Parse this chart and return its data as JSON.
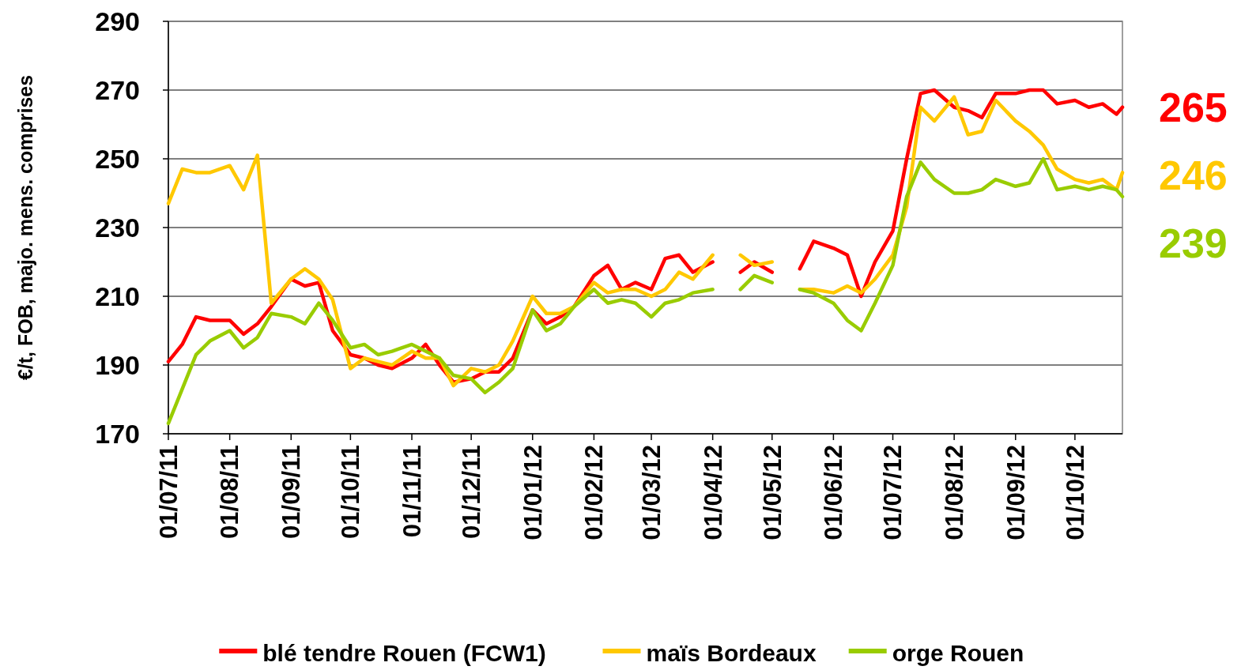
{
  "chart_data": {
    "type": "line",
    "ylabel": "€/t, FOB, majo. mens. comprises",
    "x": [
      "2011-07-01",
      "2011-07-08",
      "2011-07-15",
      "2011-07-22",
      "2011-08-01",
      "2011-08-08",
      "2011-08-15",
      "2011-08-22",
      "2011-09-01",
      "2011-09-08",
      "2011-09-15",
      "2011-09-22",
      "2011-10-01",
      "2011-10-08",
      "2011-10-15",
      "2011-10-22",
      "2011-11-01",
      "2011-11-08",
      "2011-11-15",
      "2011-11-22",
      "2011-12-01",
      "2011-12-08",
      "2011-12-15",
      "2011-12-22",
      "2012-01-01",
      "2012-01-08",
      "2012-01-15",
      "2012-01-22",
      "2012-02-01",
      "2012-02-08",
      "2012-02-15",
      "2012-02-22",
      "2012-03-01",
      "2012-03-08",
      "2012-03-15",
      "2012-03-22",
      "2012-04-01",
      "2012-04-08",
      "2012-04-15",
      "2012-04-22",
      "2012-05-01",
      "2012-05-08",
      "2012-05-15",
      "2012-05-22",
      "2012-06-01",
      "2012-06-08",
      "2012-06-15",
      "2012-06-22",
      "2012-07-01",
      "2012-07-08",
      "2012-07-15",
      "2012-07-22",
      "2012-08-01",
      "2012-08-08",
      "2012-08-15",
      "2012-08-22",
      "2012-09-01",
      "2012-09-08",
      "2012-09-15",
      "2012-09-22",
      "2012-10-01",
      "2012-10-08",
      "2012-10-15",
      "2012-10-22",
      "2012-10-25"
    ],
    "series": [
      {
        "name": "blé tendre Rouen (FCW1)",
        "color": "#ff0000",
        "values": [
          191,
          196,
          204,
          203,
          203,
          199,
          202,
          207,
          215,
          213,
          214,
          200,
          193,
          192,
          190,
          189,
          192,
          196,
          190,
          185,
          186,
          188,
          188,
          192,
          206,
          202,
          204,
          207,
          216,
          219,
          212,
          214,
          212,
          221,
          222,
          217,
          220,
          null,
          217,
          220,
          217,
          null,
          218,
          226,
          224,
          222,
          210,
          220,
          229,
          250,
          269,
          270,
          265,
          264,
          262,
          269,
          269,
          270,
          270,
          266,
          267,
          265,
          266,
          263,
          265
        ]
      },
      {
        "name": "maïs Bordeaux",
        "color": "#ffc800",
        "values": [
          237,
          247,
          246,
          246,
          248,
          241,
          251,
          208,
          215,
          218,
          215,
          209,
          189,
          192,
          191,
          190,
          194,
          192,
          192,
          184,
          189,
          188,
          190,
          197,
          210,
          205,
          205,
          207,
          214,
          211,
          212,
          212,
          210,
          212,
          217,
          215,
          222,
          null,
          222,
          219,
          220,
          null,
          212,
          212,
          211,
          213,
          211,
          215,
          222,
          236,
          265,
          261,
          268,
          257,
          258,
          267,
          261,
          258,
          254,
          247,
          244,
          243,
          244,
          241,
          246
        ]
      },
      {
        "name": "orge Rouen",
        "color": "#99cc00",
        "values": [
          173,
          183,
          193,
          197,
          200,
          195,
          198,
          205,
          204,
          202,
          208,
          203,
          195,
          196,
          193,
          194,
          196,
          194,
          192,
          187,
          186,
          182,
          185,
          189,
          206,
          200,
          202,
          207,
          212,
          208,
          209,
          208,
          204,
          208,
          209,
          211,
          212,
          null,
          212,
          216,
          214,
          null,
          212,
          211,
          208,
          203,
          200,
          208,
          219,
          239,
          249,
          244,
          240,
          240,
          241,
          244,
          242,
          243,
          250,
          241,
          242,
          241,
          242,
          241,
          239
        ]
      }
    ],
    "xlim": [
      "2011-07-01",
      "2012-10-25"
    ],
    "xticks": [
      {
        "value": "2011-07-01",
        "label": "01/07/11"
      },
      {
        "value": "2011-08-01",
        "label": "01/08/11"
      },
      {
        "value": "2011-09-01",
        "label": "01/09/11"
      },
      {
        "value": "2011-10-01",
        "label": "01/10/11"
      },
      {
        "value": "2011-11-01",
        "label": "01/11/11"
      },
      {
        "value": "2011-12-01",
        "label": "01/12/11"
      },
      {
        "value": "2012-01-01",
        "label": "01/01/12"
      },
      {
        "value": "2012-02-01",
        "label": "01/02/12"
      },
      {
        "value": "2012-03-01",
        "label": "01/03/12"
      },
      {
        "value": "2012-04-01",
        "label": "01/04/12"
      },
      {
        "value": "2012-05-01",
        "label": "01/05/12"
      },
      {
        "value": "2012-06-01",
        "label": "01/06/12"
      },
      {
        "value": "2012-07-01",
        "label": "01/07/12"
      },
      {
        "value": "2012-08-01",
        "label": "01/08/12"
      },
      {
        "value": "2012-09-01",
        "label": "01/09/12"
      },
      {
        "value": "2012-10-01",
        "label": "01/10/12"
      }
    ],
    "ylim": [
      170,
      290
    ],
    "yticks": [
      170,
      190,
      210,
      230,
      250,
      270,
      290
    ],
    "grid": "y",
    "legend": "bottom",
    "marker": "none",
    "line_style": "solid",
    "annotations": [
      {
        "text": "265",
        "x": "2012-10-25",
        "y": 265
      },
      {
        "text": "246",
        "x": "2012-10-25",
        "y": 246
      },
      {
        "text": "239",
        "x": "2012-10-25",
        "y": 239
      }
    ]
  }
}
